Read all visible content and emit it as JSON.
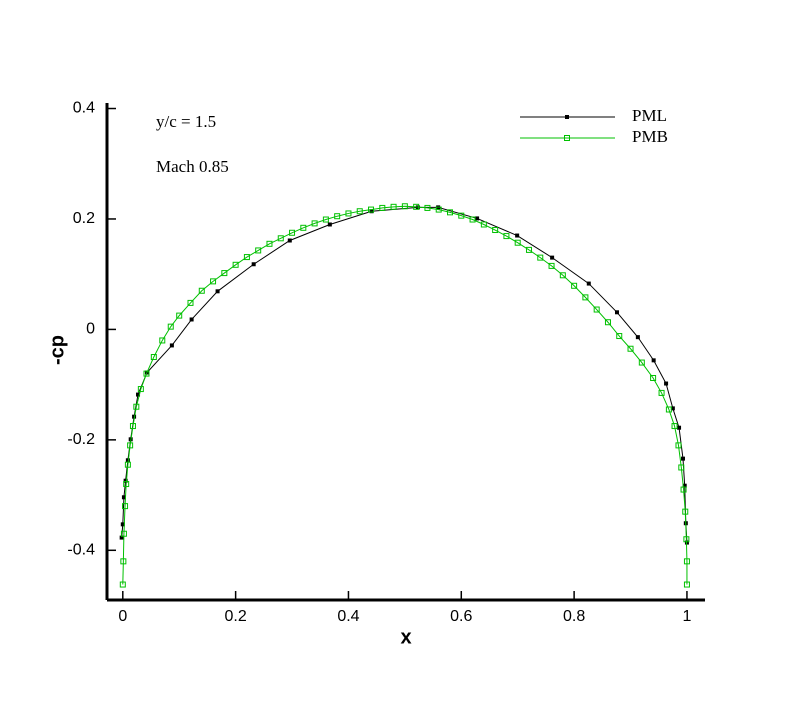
{
  "chart_data": {
    "type": "line",
    "x_label": "x",
    "y_label": "-cp",
    "annotations": [
      "y/c = 1.5",
      "Mach 0.85"
    ],
    "xlim": [
      -0.028,
      1.032
    ],
    "ylim": [
      -0.49,
      0.41
    ],
    "xticks": [
      0,
      0.2,
      0.4,
      0.6,
      0.8,
      1
    ],
    "yticks": [
      -0.4,
      -0.2,
      0,
      0.2,
      0.4
    ],
    "legend": "top-right",
    "series": [
      {
        "name": "PML",
        "color": "#000000",
        "x": [
          -0.002,
          0,
          0.002,
          0.005,
          0.009,
          0.014,
          0.02,
          0.027,
          0.043,
          0.087,
          0.122,
          0.168,
          0.232,
          0.296,
          0.367,
          0.441,
          0.523,
          0.559,
          0.628,
          0.699,
          0.761,
          0.826,
          0.876,
          0.913,
          0.941,
          0.963,
          0.975,
          0.986,
          0.993,
          0.996,
          0.998,
          1.0
        ],
        "values": [
          -0.377,
          -0.353,
          -0.304,
          -0.274,
          -0.237,
          -0.199,
          -0.158,
          -0.118,
          -0.078,
          -0.029,
          0.018,
          0.069,
          0.118,
          0.161,
          0.19,
          0.214,
          0.221,
          0.221,
          0.201,
          0.17,
          0.13,
          0.083,
          0.031,
          -0.014,
          -0.056,
          -0.098,
          -0.143,
          -0.178,
          -0.234,
          -0.283,
          -0.351,
          -0.386
        ]
      },
      {
        "name": "PMB",
        "color": "#00c000",
        "x": [
          0,
          0.001,
          0.002,
          0.004,
          0.006,
          0.009,
          0.013,
          0.018,
          0.024,
          0.032,
          0.042,
          0.055,
          0.07,
          0.085,
          0.1,
          0.12,
          0.14,
          0.16,
          0.18,
          0.2,
          0.22,
          0.24,
          0.26,
          0.28,
          0.3,
          0.32,
          0.34,
          0.36,
          0.38,
          0.4,
          0.42,
          0.44,
          0.46,
          0.48,
          0.5,
          0.52,
          0.54,
          0.56,
          0.58,
          0.6,
          0.62,
          0.64,
          0.66,
          0.68,
          0.7,
          0.72,
          0.74,
          0.76,
          0.78,
          0.8,
          0.82,
          0.84,
          0.86,
          0.88,
          0.9,
          0.92,
          0.94,
          0.955,
          0.968,
          0.978,
          0.985,
          0.99,
          0.994,
          0.997,
          0.999,
          1.0,
          1.0
        ],
        "values": [
          -0.462,
          -0.42,
          -0.37,
          -0.32,
          -0.28,
          -0.245,
          -0.21,
          -0.175,
          -0.14,
          -0.108,
          -0.08,
          -0.05,
          -0.02,
          0.005,
          0.025,
          0.048,
          0.07,
          0.087,
          0.102,
          0.117,
          0.131,
          0.143,
          0.155,
          0.165,
          0.175,
          0.184,
          0.192,
          0.199,
          0.205,
          0.21,
          0.214,
          0.217,
          0.22,
          0.222,
          0.223,
          0.222,
          0.22,
          0.217,
          0.212,
          0.206,
          0.199,
          0.19,
          0.18,
          0.169,
          0.157,
          0.144,
          0.13,
          0.115,
          0.098,
          0.079,
          0.058,
          0.036,
          0.013,
          -0.012,
          -0.035,
          -0.06,
          -0.088,
          -0.115,
          -0.145,
          -0.175,
          -0.21,
          -0.25,
          -0.29,
          -0.33,
          -0.38,
          -0.42,
          -0.462
        ]
      }
    ]
  }
}
